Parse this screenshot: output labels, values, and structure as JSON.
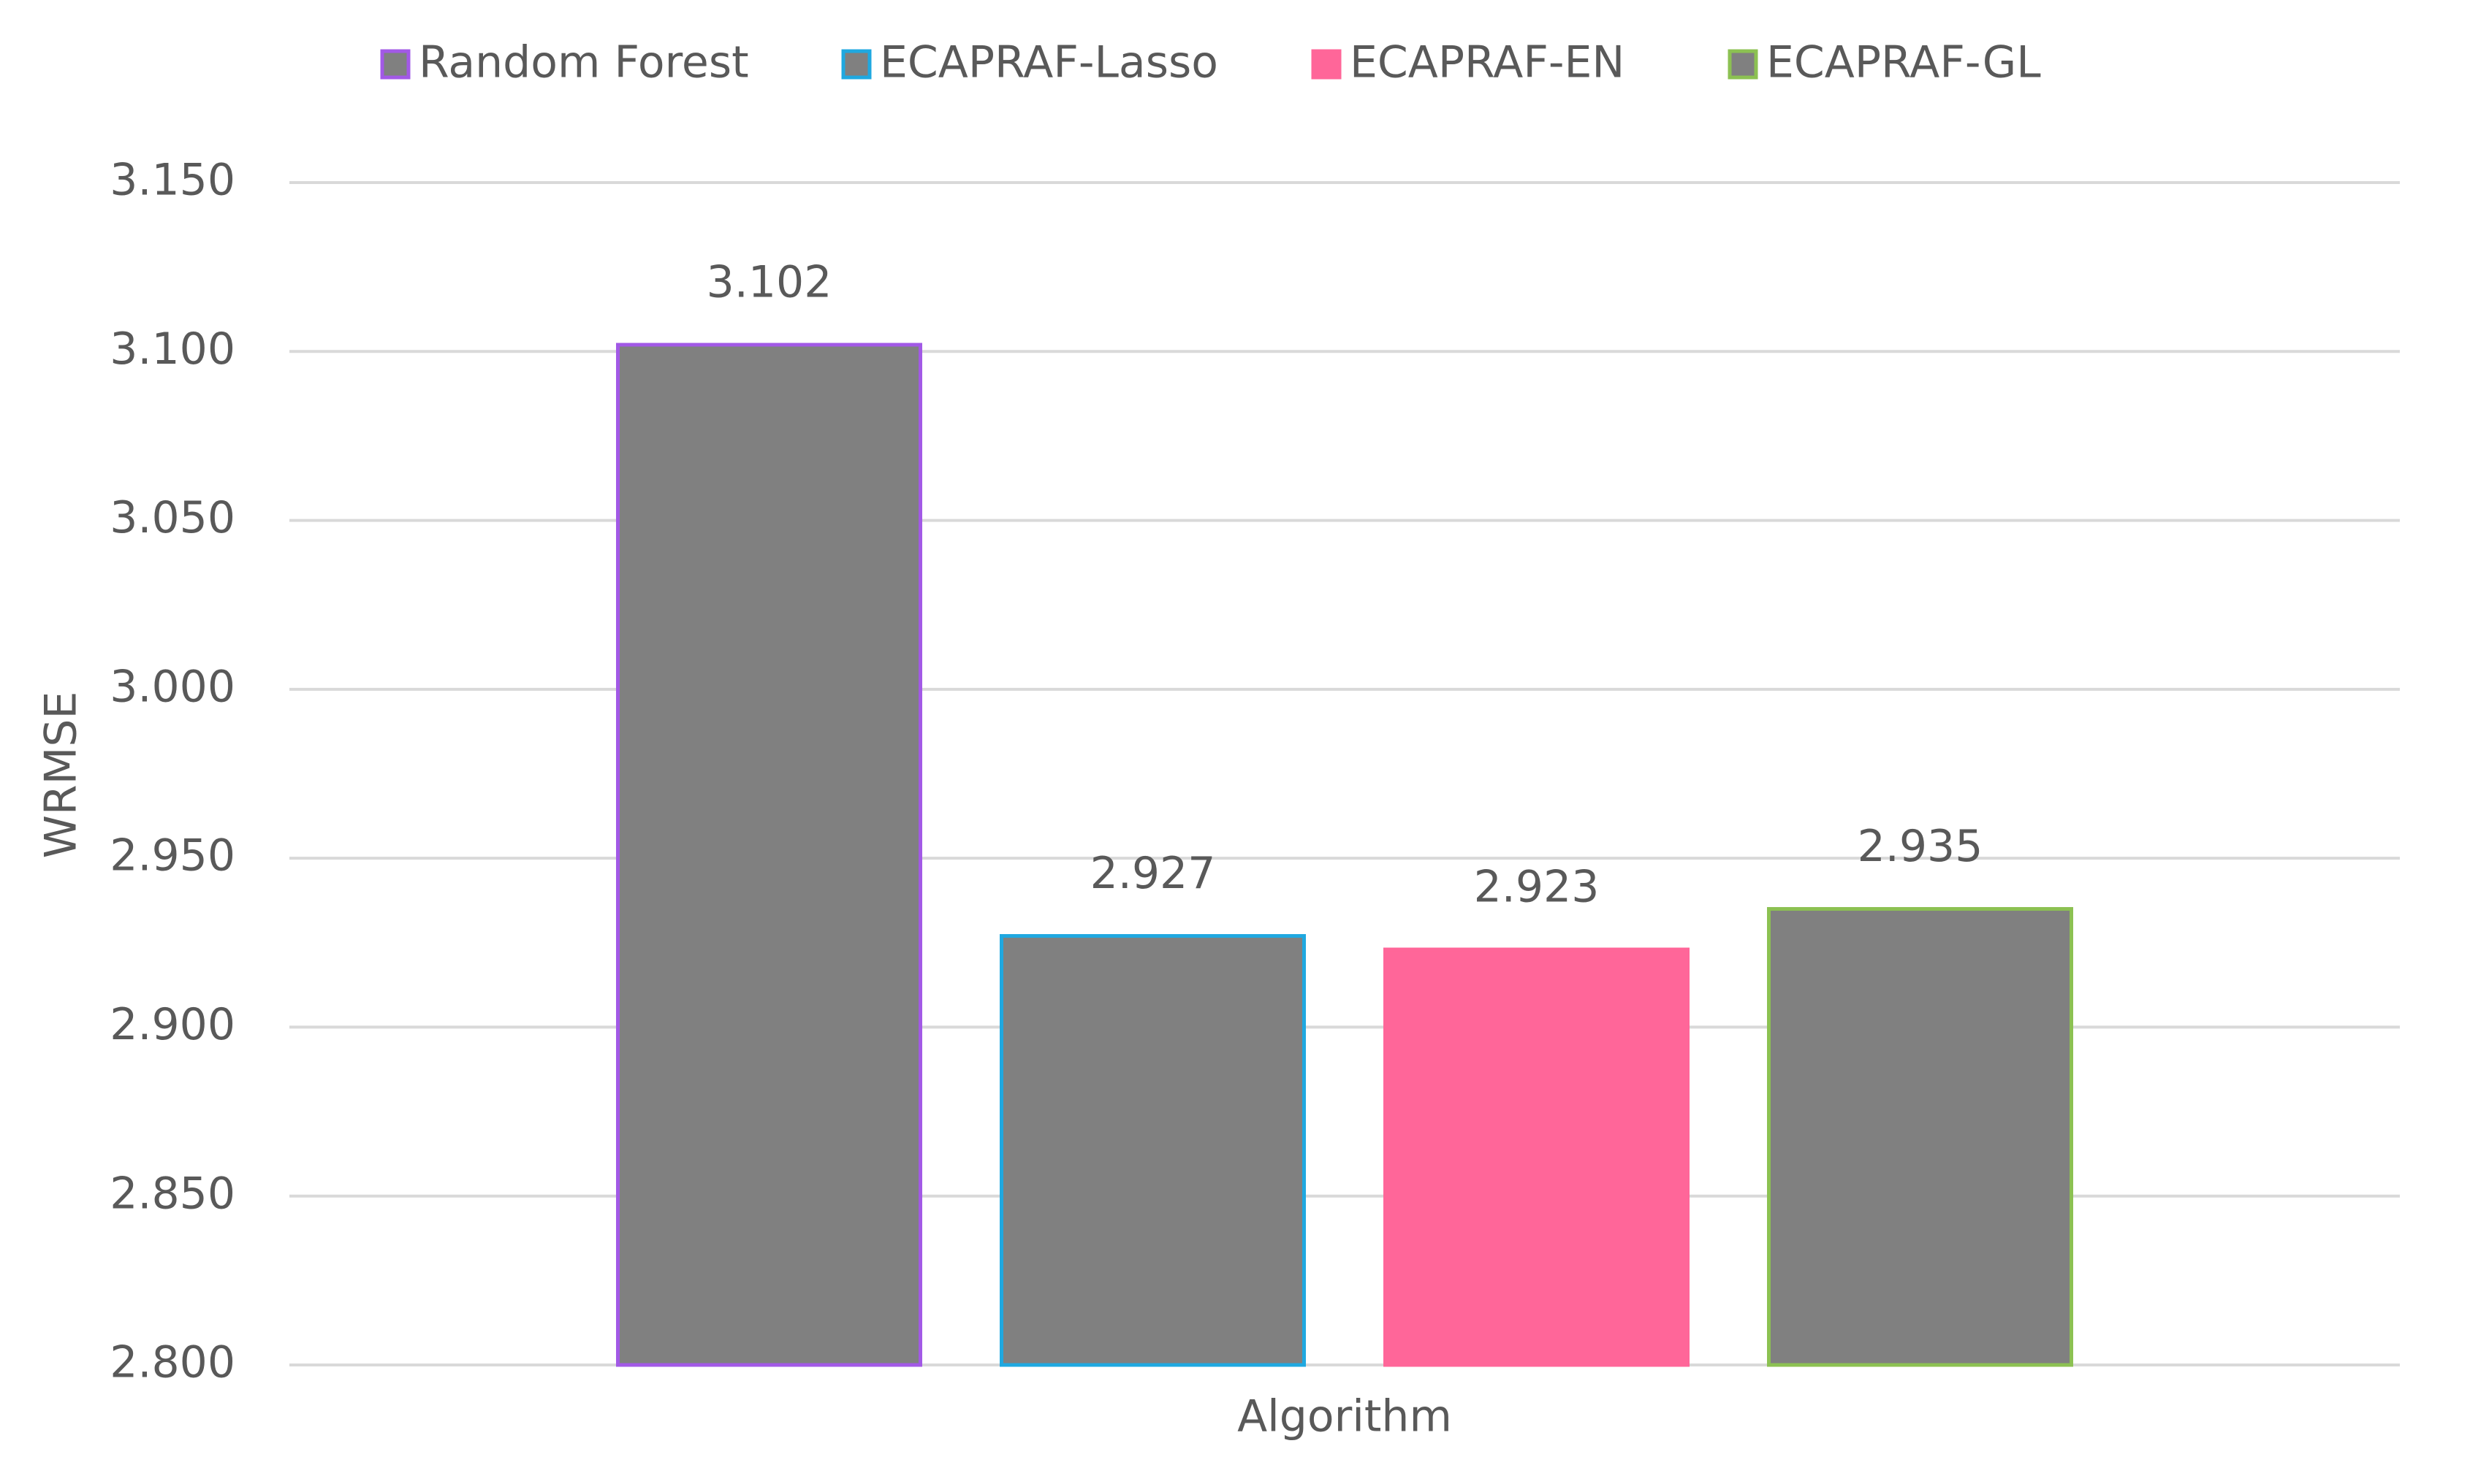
{
  "chart_data": {
    "type": "bar",
    "categories": [
      "Algorithm"
    ],
    "y_label": "WRMSE",
    "series": [
      {
        "name": "Random Forest",
        "color": "#808080",
        "edgecolor": "#a259e6",
        "values": [
          3.102
        ]
      },
      {
        "name": "ECAPRAF-Lasso",
        "color": "#808080",
        "edgecolor": "#1fa8e0",
        "values": [
          2.927
        ]
      },
      {
        "name": "ECAPRAF-EN",
        "color": "#ff6699",
        "edgecolor": "#ff6699",
        "values": [
          2.923
        ]
      },
      {
        "name": "ECAPRAF-GL",
        "color": "#808080",
        "edgecolor": "#8cc152",
        "values": [
          2.935
        ]
      }
    ],
    "ylim": [
      2.8,
      3.15
    ],
    "yticks": [
      {
        "value": 2.8,
        "label": "2.800"
      },
      {
        "value": 2.85,
        "label": "2.850"
      },
      {
        "value": 2.9,
        "label": "2.900"
      },
      {
        "value": 2.95,
        "label": "2.950"
      },
      {
        "value": 3.0,
        "label": "3.000"
      },
      {
        "value": 3.05,
        "label": "3.050"
      },
      {
        "value": 3.1,
        "label": "3.100"
      },
      {
        "value": 3.15,
        "label": "3.150"
      }
    ],
    "grid": true,
    "legend": "top"
  }
}
